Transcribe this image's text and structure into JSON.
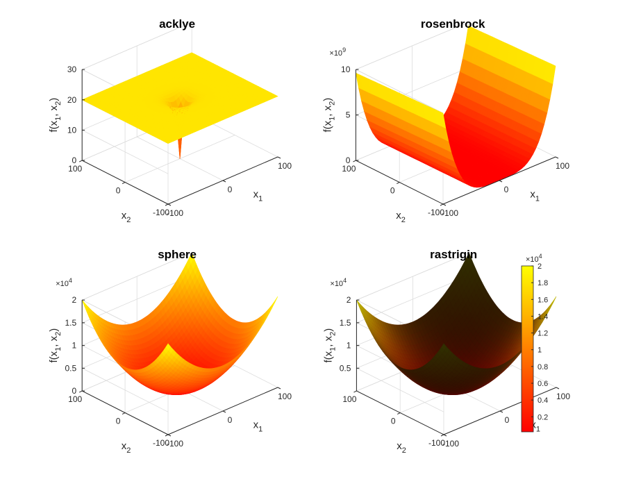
{
  "chart_data": [
    {
      "type": "surface",
      "title": "acklye",
      "xlabel": "x",
      "xlabel_sub": "1",
      "ylabel": "x",
      "ylabel_sub": "2",
      "zlabel_parts": [
        "f(x",
        "1",
        ", x",
        "2",
        ")"
      ],
      "xlim": [
        -100,
        100
      ],
      "ylim": [
        -100,
        100
      ],
      "zlim": [
        0,
        30
      ],
      "xticks": [
        "-100",
        "0",
        "100"
      ],
      "yticks": [
        "-100",
        "0",
        "100"
      ],
      "zticks": [
        "0",
        "10",
        "20",
        "30"
      ],
      "z_exponent": null,
      "function": "ackley",
      "z_min": 0,
      "z_plateau": 22.3,
      "colormap": "autumn",
      "lighting": false
    },
    {
      "type": "surface",
      "title": "rosenbrock",
      "xlabel": "x",
      "xlabel_sub": "1",
      "ylabel": "x",
      "ylabel_sub": "2",
      "zlabel_parts": [
        "f(x",
        "1",
        ", x",
        "2",
        ")"
      ],
      "xlim": [
        -100,
        100
      ],
      "ylim": [
        -100,
        100
      ],
      "zlim": [
        0,
        10
      ],
      "xticks": [
        "-100",
        "0",
        "100"
      ],
      "yticks": [
        "-100",
        "0",
        "100"
      ],
      "zticks": [
        "0",
        "5",
        "10"
      ],
      "z_exponent": "9",
      "function": "rosenbrock",
      "z_min": 0,
      "z_max": 10,
      "colormap": "autumn",
      "lighting": false
    },
    {
      "type": "surface",
      "title": "sphere",
      "xlabel": "x",
      "xlabel_sub": "1",
      "ylabel": "x",
      "ylabel_sub": "2",
      "zlabel_parts": [
        "f(x",
        "1",
        ", x",
        "2",
        ")"
      ],
      "xlim": [
        -100,
        100
      ],
      "ylim": [
        -100,
        100
      ],
      "zlim": [
        0,
        2
      ],
      "xticks": [
        "-100",
        "0",
        "100"
      ],
      "yticks": [
        "-100",
        "0",
        "100"
      ],
      "zticks": [
        "0",
        "0.5",
        "1",
        "1.5",
        "2"
      ],
      "z_exponent": "4",
      "function": "sphere",
      "z_min": 0,
      "z_max": 2,
      "colormap": "autumn",
      "lighting": false
    },
    {
      "type": "surface",
      "title": "rastrigin",
      "xlabel": "x",
      "xlabel_sub": "1",
      "ylabel": "x",
      "ylabel_sub": "2",
      "zlabel_parts": [
        "f(x",
        "1",
        ", x",
        "2",
        ")"
      ],
      "xlim": [
        -100,
        100
      ],
      "ylim": [
        -100,
        100
      ],
      "zlim": [
        0,
        2
      ],
      "xticks": [
        "-100",
        "0",
        "100"
      ],
      "yticks": [
        "-100",
        "0",
        "100"
      ],
      "zticks": [
        "0.5",
        "1",
        "1.5",
        "2"
      ],
      "z_exponent": "4",
      "function": "rastrigin",
      "z_min": 0,
      "z_max": 2,
      "colormap": "autumn",
      "lighting": true
    }
  ],
  "colorbar": {
    "colormap": "autumn",
    "range": [
      0.02,
      2
    ],
    "ticks": [
      "0.2",
      "0.4",
      "0.6",
      "0.8",
      "1",
      "1.2",
      "1.4",
      "1.6",
      "1.8",
      "2"
    ],
    "exponent": "4",
    "colors": {
      "low": "#ff0000",
      "high": "#ffff00"
    }
  },
  "colors": {
    "axis": "#262626",
    "grid": "#dcdcdc",
    "background": "#ffffff"
  }
}
